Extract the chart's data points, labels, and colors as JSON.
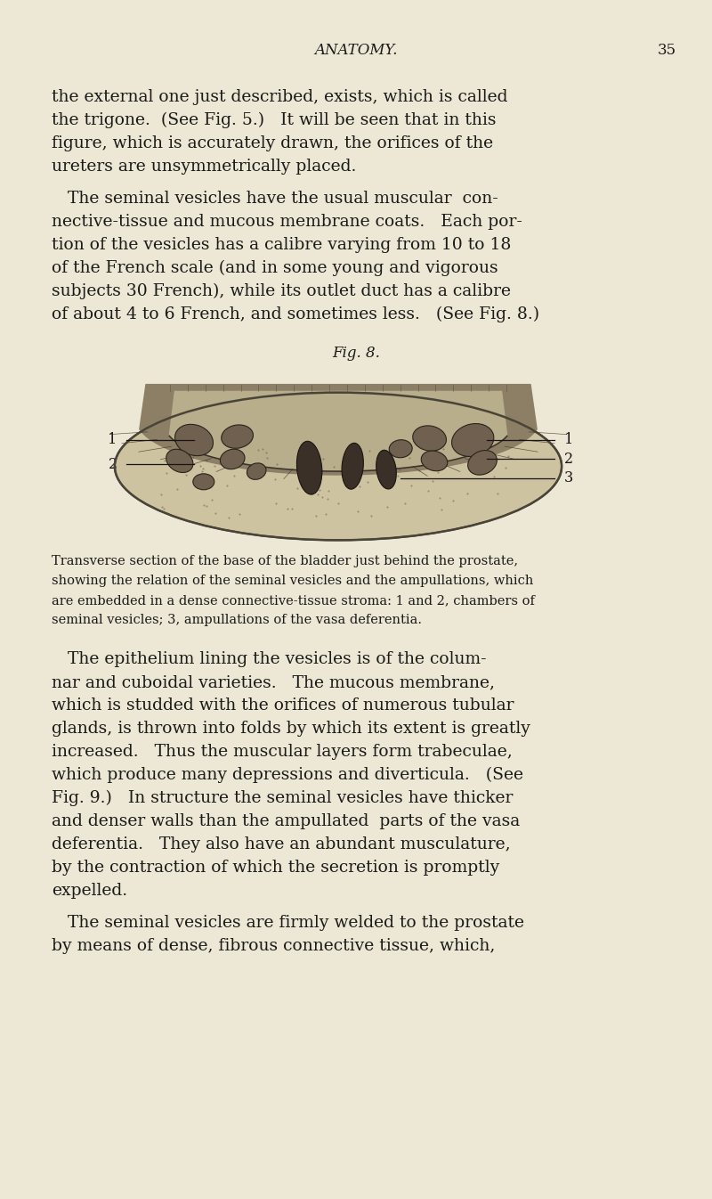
{
  "bg_color": "#ede8d5",
  "text_color": "#1a1a18",
  "page_width": 8.0,
  "page_height": 13.46,
  "dpi": 100,
  "header_text": "ANATOMY.",
  "header_page": "35",
  "paragraph1": [
    "the external one just described, exists, which is called",
    "the trigone.  (See Fig. 5.)   It will be seen that in this",
    "figure, which is accurately drawn, the orifices of the",
    "ureters are unsymmetrically placed."
  ],
  "paragraph2": [
    "   The seminal vesicles have the usual muscular  con-",
    "nective-tissue and mucous membrane coats.   Each por-",
    "tion of the vesicles has a calibre varying from 10 to 18",
    "of the French scale (and in some young and vigorous",
    "subjects 30 French), while its outlet duct has a calibre",
    "of about 4 to 6 French, and sometimes less.   (See Fig. 8.)"
  ],
  "fig_caption_title": "Fig. 8.",
  "fig_caption_lines": [
    "Transverse section of the base of the bladder just behind the prostate,",
    "showing the relation of the seminal vesicles and the ampullations, which",
    "are embedded in a dense connective-tissue stroma: 1 and 2, chambers of",
    "seminal vesicles; 3, ampullations of the vasa deferentia."
  ],
  "paragraph3": [
    "   The epithelium lining the vesicles is of the colum-",
    "nar and cuboidal varieties.   The mucous membrane,",
    "which is studded with the orifices of numerous tubular",
    "glands, is thrown into folds by which its extent is greatly",
    "increased.   Thus the muscular layers form trabeculae,",
    "which produce many depressions and diverticula.   (See",
    "Fig. 9.)   In structure the seminal vesicles have thicker",
    "and denser walls than the ampullated  parts of the vasa",
    "deferentia.   They also have an abundant musculature,",
    "by the contraction of which the secretion is promptly",
    "expelled."
  ],
  "paragraph4": [
    "   The seminal vesicles are firmly welded to the prostate",
    "by means of dense, fibrous connective tissue, which,"
  ]
}
